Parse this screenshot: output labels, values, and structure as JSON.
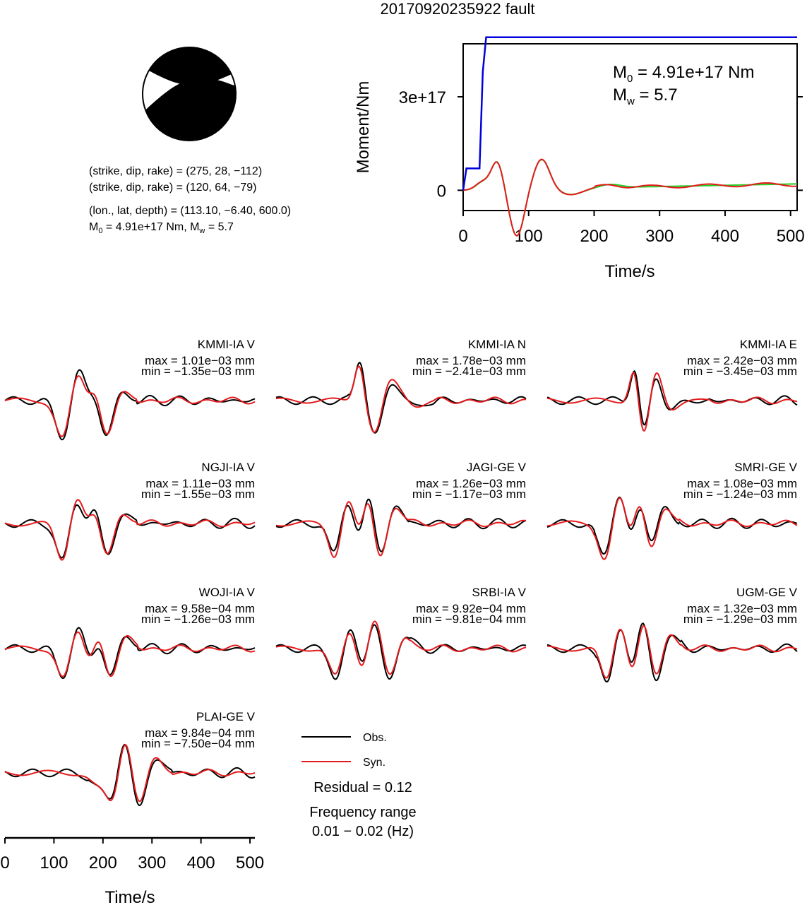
{
  "title": "20170920235922 fault",
  "colors": {
    "obs": "#000000",
    "syn": "#e41a1c",
    "stf": "#0000dd",
    "moment_green": "#22cc22"
  },
  "solution": {
    "np1": "(strike, dip, rake) = (275, 28, −112)",
    "np2": "(strike, dip, rake) = (120, 64, −79)",
    "location": "(lon., lat, depth) = (113.10, −6.40, 600.0)",
    "m0_prefix": "M",
    "m0_sub": "0",
    "m0_value": " = 4.91e+17 Nm, M",
    "mw_sub": "w",
    "mw_value": " = 5.7"
  },
  "moment_plot": {
    "ylabel": "Moment/Nm",
    "xlabel": "Time/s",
    "m0_label_prefix": "M",
    "m0_label_sub": "0",
    "m0_label_value": " = 4.91e+17 Nm",
    "mw_label_prefix": "M",
    "mw_label_sub": "w",
    "mw_label_value": " = 5.7",
    "x_ticks": [
      "0",
      "100",
      "200",
      "300",
      "400",
      "500"
    ],
    "y_ticks": [
      "0",
      "3e+17"
    ]
  },
  "legend": {
    "obs": "Obs.",
    "syn": "Syn.",
    "residual": "Residual = 0.12",
    "freq_title": "Frequency range",
    "freq_value": "0.01 − 0.02 (Hz)"
  },
  "waveform_axis": {
    "x_ticks": [
      "0",
      "100",
      "200",
      "300",
      "400",
      "500"
    ],
    "xlabel": "Time/s"
  },
  "chart_data": {
    "type": "line",
    "source_time_function": {
      "xlim": [
        0,
        510
      ],
      "ylim": [
        -6.5e+16,
        4.7e+17
      ],
      "time": [
        0,
        5,
        10,
        25,
        30,
        35,
        50,
        510
      ],
      "moment": [
        0,
        7e+16,
        7e+16,
        7e+16,
        3.8e+17,
        4.91e+17,
        4.91e+17,
        4.91e+17
      ],
      "m0": 4.91e+17,
      "mw": 5.7
    },
    "stations": [
      {
        "name": "KMMI-IA V",
        "max": "max = 1.01e−03 mm",
        "min": "min = −1.35e−03 mm",
        "t0": 118,
        "peaks": [
          [
            0,
            -0.95,
            26
          ],
          [
            32,
            0.75,
            26
          ],
          [
            52,
            -0.35,
            24
          ],
          [
            66,
            0.6,
            24
          ],
          [
            90,
            -1.0,
            28
          ],
          [
            116,
            0.3,
            30
          ]
        ]
      },
      {
        "name": "KMMI-IA N",
        "max": "max = 1.78e−03 mm",
        "min": "min = −2.41e−03 mm",
        "t0": 170,
        "peaks": [
          [
            0,
            0.95,
            18
          ],
          [
            34,
            -0.95,
            28
          ],
          [
            56,
            0.5,
            28
          ],
          [
            82,
            0.3,
            36
          ],
          [
            110,
            -0.2,
            40
          ]
        ]
      },
      {
        "name": "KMMI-IA E",
        "max": "max = 2.42e−03 mm",
        "min": "min = −3.45e−03 mm",
        "t0": 178,
        "peaks": [
          [
            0,
            0.9,
            16
          ],
          [
            20,
            -1.0,
            22
          ],
          [
            44,
            0.85,
            24
          ],
          [
            70,
            -0.25,
            30
          ]
        ]
      },
      {
        "name": "NGJI-IA V",
        "max": "max = 1.11e−03 mm",
        "min": "min = −1.55e−03 mm",
        "t0": 118,
        "peaks": [
          [
            0,
            -0.95,
            24
          ],
          [
            30,
            0.75,
            26
          ],
          [
            52,
            -0.35,
            24
          ],
          [
            66,
            0.6,
            24
          ],
          [
            90,
            -1.0,
            28
          ],
          [
            114,
            0.4,
            30
          ]
        ]
      },
      {
        "name": "JAGI-GE V",
        "max": "max = 1.26e−03 mm",
        "min": "min = −1.17e−03 mm",
        "t0": 120,
        "peaks": [
          [
            0,
            -0.85,
            22
          ],
          [
            28,
            0.65,
            24
          ],
          [
            52,
            -0.5,
            22
          ],
          [
            68,
            0.9,
            22
          ],
          [
            92,
            -1.0,
            26
          ],
          [
            118,
            0.5,
            28
          ]
        ]
      },
      {
        "name": "SMRI-GE V",
        "max": "max = 1.08e−03 mm",
        "min": "min = −1.24e−03 mm",
        "t0": 118,
        "peaks": [
          [
            0,
            -0.9,
            24
          ],
          [
            30,
            0.75,
            24
          ],
          [
            52,
            -0.5,
            22
          ],
          [
            72,
            0.8,
            24
          ],
          [
            94,
            -0.9,
            26
          ],
          [
            116,
            0.5,
            28
          ]
        ]
      },
      {
        "name": "WOJI-IA V",
        "max": "max = 9.58e−04 mm",
        "min": "min = −1.26e−03 mm",
        "t0": 120,
        "peaks": [
          [
            0,
            -0.75,
            24
          ],
          [
            30,
            0.55,
            26
          ],
          [
            52,
            -0.5,
            24
          ],
          [
            72,
            0.6,
            24
          ],
          [
            96,
            -0.9,
            28
          ],
          [
            122,
            0.4,
            30
          ]
        ]
      },
      {
        "name": "SRBI-IA V",
        "max": "max = 9.92e−04 mm",
        "min": "min = −9.81e−04 mm",
        "t0": 122,
        "peaks": [
          [
            0,
            -0.7,
            24
          ],
          [
            28,
            0.5,
            24
          ],
          [
            54,
            -0.6,
            22
          ],
          [
            80,
            0.85,
            26
          ],
          [
            110,
            -0.85,
            28
          ],
          [
            136,
            0.4,
            28
          ]
        ]
      },
      {
        "name": "UGM-GE V",
        "max": "max = 1.32e−03 mm",
        "min": "min = −1.29e−03 mm",
        "t0": 122,
        "peaks": [
          [
            0,
            -0.8,
            22
          ],
          [
            28,
            0.65,
            24
          ],
          [
            52,
            -0.7,
            22
          ],
          [
            76,
            0.85,
            24
          ],
          [
            100,
            -0.95,
            26
          ],
          [
            124,
            0.5,
            28
          ]
        ]
      },
      {
        "name": "PLAI-GE V",
        "max": "max = 9.84e−04 mm",
        "min": "min = −7.50e−04 mm",
        "t0": 190,
        "peaks": [
          [
            0,
            -0.3,
            30
          ],
          [
            30,
            -0.7,
            24
          ],
          [
            56,
            0.95,
            24
          ],
          [
            84,
            -0.85,
            26
          ],
          [
            114,
            0.4,
            28
          ]
        ]
      }
    ]
  }
}
